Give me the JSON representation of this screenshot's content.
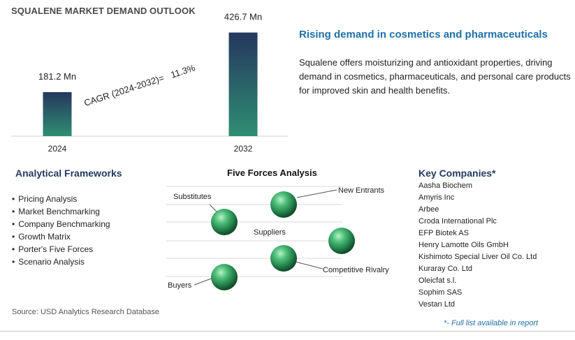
{
  "page_title": "SQUALENE MARKET DEMAND OUTLOOK",
  "chart_data": {
    "type": "bar",
    "categories": [
      "2024",
      "2032"
    ],
    "values": [
      181.2,
      426.7
    ],
    "value_labels": [
      "181.2 Mn",
      "426.7 Mn"
    ],
    "annotation": "CAGR (2024-2032)=   11.3%",
    "title": "",
    "xlabel": "",
    "ylabel": "",
    "ylim": [
      0,
      460
    ],
    "colors": {
      "bar_top": "#25375e",
      "bar_bottom": "#2f8e72"
    }
  },
  "insight": {
    "headline": "Rising demand in cosmetics and pharmaceuticals",
    "text": "Squalene offers moisturizing and antioxidant properties, driving demand in cosmetics, pharmaceuticals, and personal care products for improved skin and health benefits."
  },
  "frameworks": {
    "title": "Analytical Frameworks",
    "items": [
      "Pricing Analysis",
      "Market Benchmarking",
      "Company Benchmarking",
      "Growth Matrix",
      "Porter's Five Forces",
      "Scenario Analysis"
    ]
  },
  "five_forces": {
    "title": "Five Forces Analysis",
    "labels": {
      "substitutes": "Substitutes",
      "new_entrants": "New Entrants",
      "suppliers": "Suppliers",
      "competitive_rivalry": "Competitive Rivalry",
      "buyers": "Buyers"
    }
  },
  "companies": {
    "title": "Key Companies*",
    "items": [
      "Aasha Biochem",
      "Amyris Inc",
      "Arbee",
      "Croda International Plc",
      "EFP Biotek AS",
      "Henry Lamotte Oils GmbH",
      "Kishimoto Special Liver Oil Co. Ltd",
      "Kuraray Co. Ltd",
      "Oleicfat s.l.",
      "Sophim SAS",
      "Vestan Ltd"
    ],
    "footnote": "*- Full list available in report"
  },
  "source": "Source: USD Analytics Research Database",
  "colors": {
    "accent": "#1f6fa8",
    "sphere": "#2e9a5c"
  }
}
